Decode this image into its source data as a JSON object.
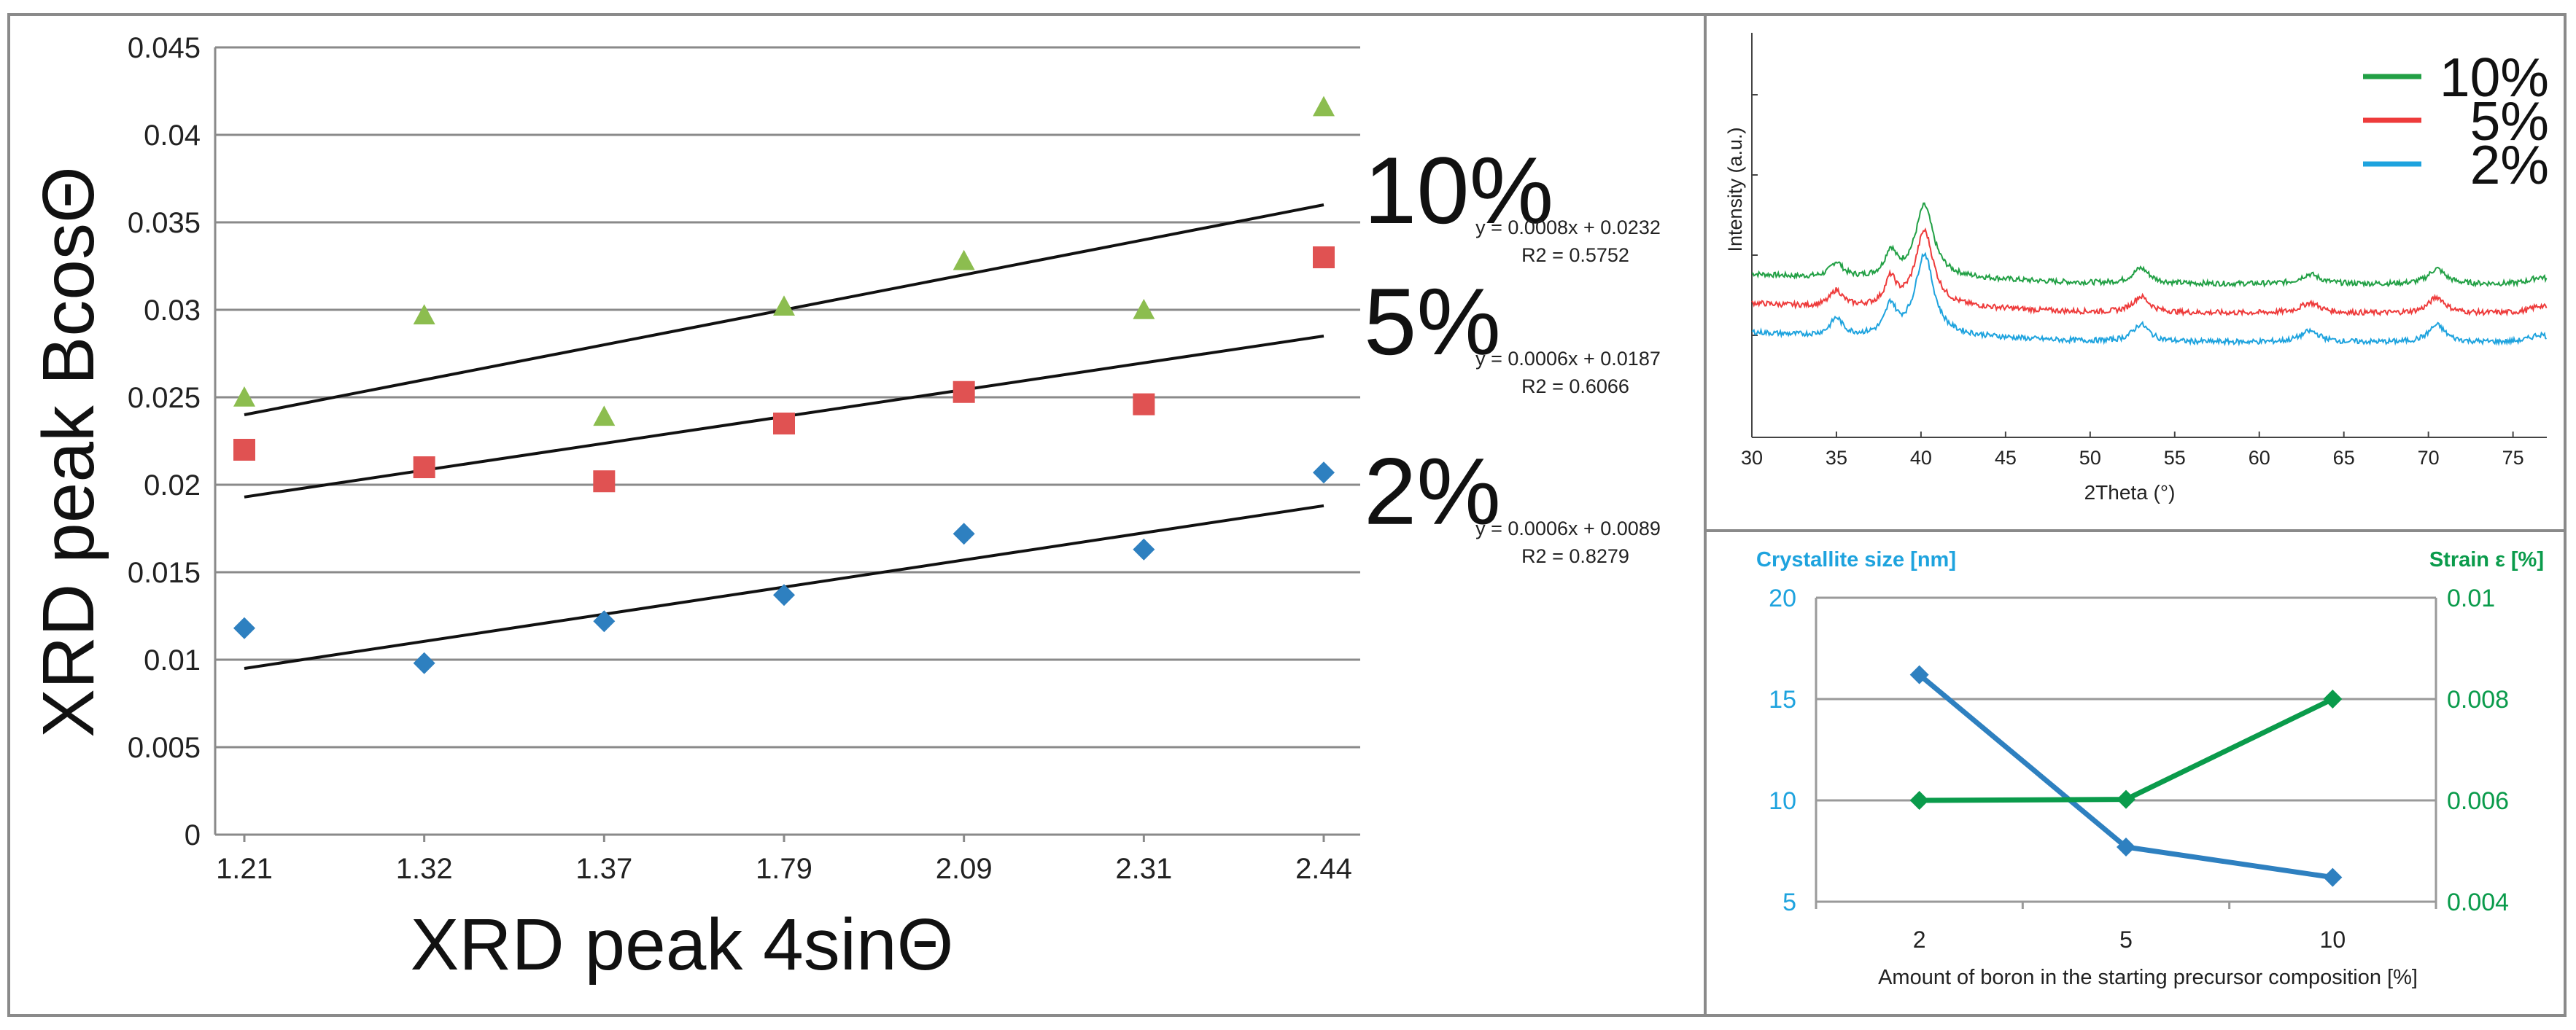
{
  "chart_data": [
    {
      "type": "scatter",
      "xlabel": "XRD peak 4sinΘ",
      "ylabel": "XRD peak BcosΘ",
      "categories": [
        "1.21",
        "1.32",
        "1.37",
        "1.79",
        "2.09",
        "2.31",
        "2.44"
      ],
      "ylim": [
        0,
        0.045
      ],
      "yticks": [
        "0",
        "0.005",
        "0.01",
        "0.015",
        "0.02",
        "0.025",
        "0.03",
        "0.035",
        "0.04",
        "0.045"
      ],
      "grid": true,
      "series": [
        {
          "name": "10%",
          "marker": "triangle",
          "color": "#8cbd4f",
          "values": [
            0.025,
            0.0297,
            0.0239,
            0.0302,
            0.0328,
            0.03,
            0.0416
          ],
          "trend": {
            "start": 0.024,
            "end": 0.036
          },
          "equation": "y = 0.0008x + 0.0232",
          "r2": "R2 = 0.5752"
        },
        {
          "name": "5%",
          "marker": "square",
          "color": "#e05252",
          "values": [
            0.022,
            0.021,
            0.0202,
            0.0235,
            0.0253,
            0.0246,
            0.033
          ],
          "trend": {
            "start": 0.0193,
            "end": 0.0285
          },
          "equation": "y = 0.0006x + 0.0187",
          "r2": "R2 = 0.6066"
        },
        {
          "name": "2%",
          "marker": "diamond",
          "color": "#2e80c0",
          "values": [
            0.0118,
            0.0098,
            0.0122,
            0.0137,
            0.0172,
            0.0163,
            0.0207
          ],
          "trend": {
            "start": 0.0095,
            "end": 0.0188
          },
          "equation": "y = 0.0006x + 0.0089",
          "r2": "R2 = 0.8279"
        }
      ]
    },
    {
      "type": "line",
      "xlabel": "2Theta (°)",
      "ylabel": "Intensity (a.u.)",
      "xlim": [
        30,
        77
      ],
      "xticks": [
        "30",
        "35",
        "40",
        "45",
        "50",
        "55",
        "60",
        "65",
        "70",
        "75"
      ],
      "legend_position": "top-right",
      "peaks": [
        {
          "center": 35.0,
          "amp": 0.55,
          "width": 0.45
        },
        {
          "center": 38.2,
          "amp": 0.9,
          "width": 0.4
        },
        {
          "center": 40.2,
          "amp": 2.6,
          "width": 0.65
        },
        {
          "center": 53.0,
          "amp": 0.55,
          "width": 0.6
        },
        {
          "center": 63.0,
          "amp": 0.35,
          "width": 0.7
        },
        {
          "center": 70.5,
          "amp": 0.55,
          "width": 0.6
        },
        {
          "center": 76.6,
          "amp": 0.25,
          "width": 0.7
        }
      ],
      "series": [
        {
          "name": "10%",
          "color": "#22a045",
          "offset": 2.0,
          "scale": 0.95
        },
        {
          "name": "5%",
          "color": "#ee3b3b",
          "offset": 1.0,
          "scale": 1.0
        },
        {
          "name": "2%",
          "color": "#1ea3de",
          "offset": 0.0,
          "scale": 1.08
        }
      ]
    },
    {
      "type": "line",
      "xlabel": "Amount of boron in the starting precursor composition [%]",
      "categories": [
        "2",
        "5",
        "10"
      ],
      "ylabel_left": "Crystallite size [nm]",
      "ylabel_right": "Strain ε [%]",
      "ylim_left": [
        5,
        20
      ],
      "yticks_left": [
        "5",
        "10",
        "15",
        "20"
      ],
      "ylim_right": [
        0.004,
        0.01
      ],
      "yticks_right": [
        "0.004",
        "0.006",
        "0.008",
        "0.01"
      ],
      "left_color": "#1ea3de",
      "right_color": "#0a9b4b",
      "series": [
        {
          "name": "Crystallite size",
          "axis": "left",
          "color": "#2e80c0",
          "values": [
            16.2,
            7.7,
            6.2
          ]
        },
        {
          "name": "Strain",
          "axis": "right",
          "color": "#0a9b4b",
          "values": [
            0.006,
            0.00602,
            0.008
          ]
        }
      ]
    }
  ]
}
